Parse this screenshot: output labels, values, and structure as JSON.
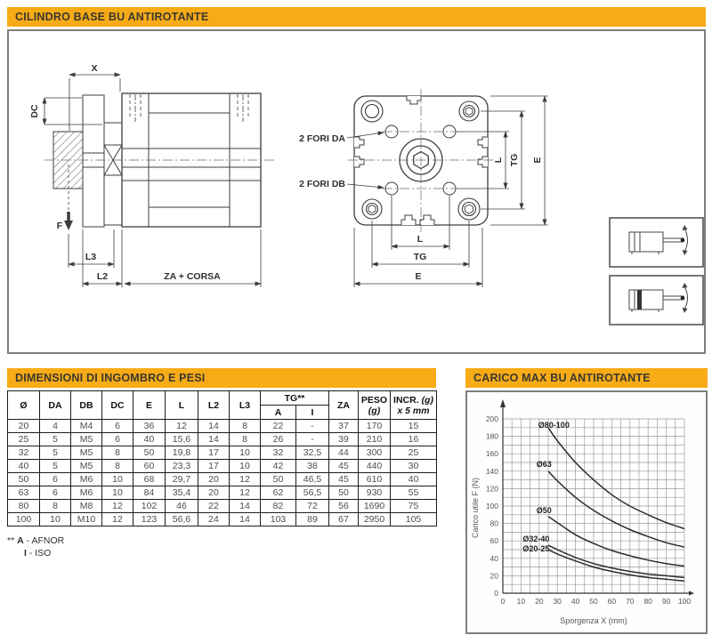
{
  "page": {
    "title": "CILINDRO BASE BU ANTIROTANTE",
    "accent_color": "#F7AB17",
    "panel_border_color": "#7E7E7E"
  },
  "drawing": {
    "side": {
      "x": "X",
      "dc": "DC",
      "f": "F",
      "l3": "L3",
      "l2": "L2",
      "za": "ZA + CORSA"
    },
    "front": {
      "fori_da": "2 FORI DA",
      "fori_db": "2 FORI DB",
      "l": "L",
      "tg": "TG",
      "e": "E"
    },
    "pictograms": [
      "cylinder-single-acting",
      "cylinder-magnetic-piston"
    ]
  },
  "table": {
    "title": "DIMENSIONI DI INGOMBRO E PESI",
    "headers": {
      "d": "Ø",
      "da": "DA",
      "db": "DB",
      "dc": "DC",
      "e": "E",
      "l": "L",
      "l2": "L2",
      "l3": "L3",
      "tg": "TG**",
      "tg_a": "A",
      "tg_i": "I",
      "za": "ZA",
      "peso1": "PESO",
      "peso2": "(g)",
      "incr1": "INCR.",
      "incr1i": "(g)",
      "incr2": "x 5 mm"
    },
    "rows": [
      [
        "20",
        "4",
        "M4",
        "6",
        "36",
        "12",
        "14",
        "8",
        "22",
        "-",
        "37",
        "170",
        "15"
      ],
      [
        "25",
        "5",
        "M5",
        "6",
        "40",
        "15,6",
        "14",
        "8",
        "26",
        "-",
        "39",
        "210",
        "16"
      ],
      [
        "32",
        "5",
        "M5",
        "8",
        "50",
        "19,8",
        "17",
        "10",
        "32",
        "32,5",
        "44",
        "300",
        "25"
      ],
      [
        "40",
        "5",
        "M5",
        "8",
        "60",
        "23,3",
        "17",
        "10",
        "42",
        "38",
        "45",
        "440",
        "30"
      ],
      [
        "50",
        "6",
        "M6",
        "10",
        "68",
        "29,7",
        "20",
        "12",
        "50",
        "46,5",
        "45",
        "610",
        "40"
      ],
      [
        "63",
        "6",
        "M6",
        "10",
        "84",
        "35,4",
        "20",
        "12",
        "62",
        "56,5",
        "50",
        "930",
        "55"
      ],
      [
        "80",
        "8",
        "M8",
        "12",
        "102",
        "46",
        "22",
        "14",
        "82",
        "72",
        "56",
        "1690",
        "75"
      ],
      [
        "100",
        "10",
        "M10",
        "12",
        "123",
        "56,6",
        "24",
        "14",
        "103",
        "89",
        "67",
        "2950",
        "105"
      ]
    ],
    "footnote": {
      "mark": "**",
      "k1": "A",
      "v1": "- AFNOR",
      "k2": "I",
      "v2": "- ISO"
    }
  },
  "chart_data": {
    "type": "line",
    "title": "CARICO MAX BU ANTIROTANTE",
    "xlabel": "Sporgenza X (mm)",
    "ylabel": "Carico utile F (N)",
    "xlim": [
      0,
      100
    ],
    "ylim": [
      0,
      200
    ],
    "x_ticks": [
      0,
      10,
      20,
      30,
      40,
      50,
      60,
      70,
      80,
      90,
      100
    ],
    "y_ticks": [
      0,
      20,
      40,
      60,
      80,
      100,
      120,
      140,
      160,
      180,
      200
    ],
    "grid": true,
    "minor_grid_step": {
      "x": 5,
      "y": 10
    },
    "legend_position": "labels-on-curves",
    "x": [
      25,
      30,
      40,
      50,
      60,
      70,
      80,
      90,
      100
    ],
    "series": [
      {
        "name": "Ø80-100",
        "values": [
          190,
          175,
          150,
          130,
          113,
          100,
          90,
          81,
          74
        ],
        "label_pos": [
          19.5,
          190
        ]
      },
      {
        "name": "Ø63",
        "values": [
          140,
          129,
          110,
          95,
          83,
          73,
          65,
          58,
          53
        ],
        "label_pos": [
          18.5,
          145
        ]
      },
      {
        "name": "Ø50",
        "values": [
          88,
          81,
          67,
          57,
          49,
          43,
          38,
          34,
          31
        ],
        "label_pos": [
          18.5,
          92
        ]
      },
      {
        "name": "Ø32-40",
        "values": [
          55,
          50,
          41,
          34,
          29,
          25,
          22,
          20,
          18
        ],
        "label_pos": [
          11,
          59
        ]
      },
      {
        "name": "Ø20-25",
        "values": [
          50,
          45,
          37,
          30,
          25,
          21,
          18,
          16,
          14
        ],
        "label_pos": [
          11,
          48
        ]
      }
    ]
  }
}
